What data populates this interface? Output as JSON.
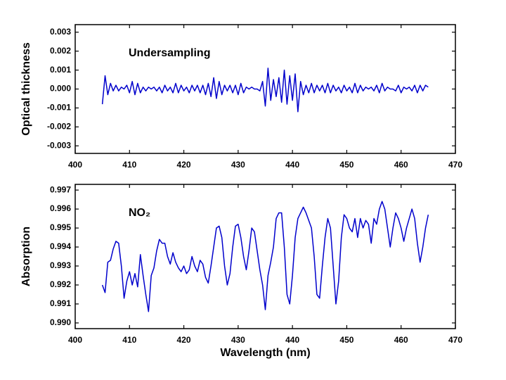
{
  "chart_data": [
    {
      "type": "line",
      "ylabel": "Optical thickness",
      "annotation": "Undersampling",
      "xlim": [
        400,
        470
      ],
      "xticks": [
        400,
        410,
        420,
        430,
        440,
        450,
        460,
        470
      ],
      "ylim": [
        -0.0034,
        0.0034
      ],
      "yticks": [
        -0.003,
        -0.002,
        -0.001,
        {
          "value": 0,
          "label": "0.000"
        },
        0.001,
        0.002,
        0.003
      ],
      "x": [
        405,
        405.5,
        406,
        406.5,
        407,
        407.5,
        408,
        408.5,
        409,
        409.5,
        410,
        410.5,
        411,
        411.5,
        412,
        412.5,
        413,
        413.5,
        414,
        414.5,
        415,
        415.5,
        416,
        416.5,
        417,
        417.5,
        418,
        418.5,
        419,
        419.5,
        420,
        420.5,
        421,
        421.5,
        422,
        422.5,
        423,
        423.5,
        424,
        424.5,
        425,
        425.5,
        426,
        426.5,
        427,
        427.5,
        428,
        428.5,
        429,
        429.5,
        430,
        430.5,
        431,
        431.5,
        432,
        432.5,
        433,
        433.5,
        434,
        434.5,
        435,
        435.5,
        436,
        436.5,
        437,
        437.5,
        438,
        438.5,
        439,
        439.5,
        440,
        440.5,
        441,
        441.5,
        442,
        442.5,
        443,
        443.5,
        444,
        444.5,
        445,
        445.5,
        446,
        446.5,
        447,
        447.5,
        448,
        448.5,
        449,
        449.5,
        450,
        450.5,
        451,
        451.5,
        452,
        452.5,
        453,
        453.5,
        454,
        454.5,
        455,
        455.5,
        456,
        456.5,
        457,
        457.5,
        458,
        458.5,
        459,
        459.5,
        460,
        460.5,
        461,
        461.5,
        462,
        462.5,
        463,
        463.5,
        464,
        464.5,
        465
      ],
      "series": [
        {
          "color": "#0000cc",
          "values": [
            -0.0008,
            0.0007,
            -0.0003,
            0.0003,
            -0.0001,
            0.0002,
            -0.0001,
            0.0001,
            0.0,
            0.0002,
            -0.0002,
            0.0004,
            -0.0003,
            0.0003,
            -0.0002,
            0.0001,
            -0.0001,
            0.0001,
            0.0,
            0.0001,
            -0.0001,
            0.0001,
            -0.0002,
            0.0002,
            -0.0001,
            0.0001,
            -0.0002,
            0.0003,
            -0.0002,
            0.0002,
            -0.0001,
            0.0001,
            -0.0002,
            0.0002,
            -0.0001,
            0.0002,
            -0.0002,
            0.0002,
            -0.0003,
            0.0003,
            -0.0004,
            0.0006,
            -0.0005,
            0.0004,
            -0.0003,
            0.0002,
            -0.0001,
            0.0002,
            -0.0002,
            0.0002,
            -0.0003,
            0.0003,
            -0.0002,
            0.0001,
            0.0,
            0.0001,
            0.0,
            0.0,
            -0.0001,
            0.0004,
            -0.0009,
            0.0011,
            -0.0006,
            0.0005,
            -0.0004,
            0.0006,
            -0.0007,
            0.001,
            -0.0008,
            0.0007,
            -0.0006,
            0.0008,
            -0.0012,
            0.0004,
            -0.0003,
            0.0002,
            -0.0002,
            0.0003,
            -0.0002,
            0.0002,
            -0.0001,
            0.0002,
            -0.0002,
            0.0003,
            -0.0002,
            0.0002,
            -0.0001,
            0.0001,
            -0.0002,
            0.0002,
            -0.0001,
            0.0001,
            -0.0002,
            0.0003,
            -0.0002,
            0.0002,
            -0.0001,
            0.0001,
            0.0,
            0.0001,
            -0.0001,
            0.0002,
            -0.0002,
            0.0003,
            -0.0001,
            0.0001,
            0.0,
            0.0,
            -0.0001,
            0.0002,
            -0.0002,
            0.0001,
            0.0,
            0.0001,
            -0.0001,
            0.0002,
            -0.0002,
            0.0002,
            -0.0001,
            0.0002,
            0.0001
          ]
        }
      ]
    },
    {
      "type": "line",
      "ylabel": "Absorption",
      "xlabel": "Wavelength (nm)",
      "annotation": "NO₂",
      "xlim": [
        400,
        470
      ],
      "xticks": [
        400,
        410,
        420,
        430,
        440,
        450,
        460,
        470
      ],
      "ylim": [
        0.9897,
        0.9973
      ],
      "yticks": [
        {
          "value": 0.99,
          "label": "0.990"
        },
        0.991,
        0.992,
        0.993,
        0.994,
        0.995,
        0.996,
        0.997
      ],
      "x": [
        405,
        405.5,
        406,
        406.5,
        407,
        407.5,
        408,
        408.5,
        409,
        409.5,
        410,
        410.5,
        411,
        411.5,
        412,
        412.5,
        413,
        413.5,
        414,
        414.5,
        415,
        415.5,
        416,
        416.5,
        417,
        417.5,
        418,
        418.5,
        419,
        419.5,
        420,
        420.5,
        421,
        421.5,
        422,
        422.5,
        423,
        423.5,
        424,
        424.5,
        425,
        425.5,
        426,
        426.5,
        427,
        427.5,
        428,
        428.5,
        429,
        429.5,
        430,
        430.5,
        431,
        431.5,
        432,
        432.5,
        433,
        433.5,
        434,
        434.5,
        435,
        435.5,
        436,
        436.5,
        437,
        437.5,
        438,
        438.5,
        439,
        439.5,
        440,
        440.5,
        441,
        441.5,
        442,
        442.5,
        443,
        443.5,
        444,
        444.5,
        445,
        445.5,
        446,
        446.5,
        447,
        447.5,
        448,
        448.5,
        449,
        449.5,
        450,
        450.5,
        451,
        451.5,
        452,
        452.5,
        453,
        453.5,
        454,
        454.5,
        455,
        455.5,
        456,
        456.5,
        457,
        457.5,
        458,
        458.5,
        459,
        459.5,
        460,
        460.5,
        461,
        461.5,
        462,
        462.5,
        463,
        463.5,
        464,
        464.5,
        465
      ],
      "series": [
        {
          "color": "#0000cc",
          "values": [
            0.992,
            0.9916,
            0.9932,
            0.9933,
            0.9939,
            0.9943,
            0.9942,
            0.993,
            0.9913,
            0.9922,
            0.9927,
            0.992,
            0.9926,
            0.9919,
            0.9936,
            0.9925,
            0.9915,
            0.9906,
            0.9925,
            0.9929,
            0.9938,
            0.9944,
            0.9942,
            0.9942,
            0.9935,
            0.9931,
            0.9937,
            0.9932,
            0.9929,
            0.9927,
            0.993,
            0.9926,
            0.9928,
            0.9935,
            0.993,
            0.9927,
            0.9933,
            0.9931,
            0.9924,
            0.9921,
            0.993,
            0.994,
            0.995,
            0.9951,
            0.9945,
            0.993,
            0.992,
            0.9926,
            0.994,
            0.9951,
            0.9952,
            0.9945,
            0.9935,
            0.9928,
            0.9938,
            0.995,
            0.9948,
            0.9938,
            0.9928,
            0.992,
            0.9907,
            0.9925,
            0.9932,
            0.994,
            0.9955,
            0.9958,
            0.9958,
            0.994,
            0.9915,
            0.991,
            0.9925,
            0.9945,
            0.9955,
            0.9958,
            0.9961,
            0.9958,
            0.9954,
            0.995,
            0.9935,
            0.9915,
            0.9913,
            0.993,
            0.9945,
            0.9955,
            0.995,
            0.993,
            0.991,
            0.9922,
            0.9945,
            0.9957,
            0.9955,
            0.995,
            0.9948,
            0.9955,
            0.9945,
            0.9955,
            0.995,
            0.9954,
            0.9952,
            0.9942,
            0.9955,
            0.9952,
            0.996,
            0.9964,
            0.996,
            0.995,
            0.994,
            0.995,
            0.9958,
            0.9955,
            0.995,
            0.9943,
            0.995,
            0.9955,
            0.996,
            0.9955,
            0.9942,
            0.9932,
            0.994,
            0.995,
            0.9957
          ]
        }
      ]
    }
  ]
}
